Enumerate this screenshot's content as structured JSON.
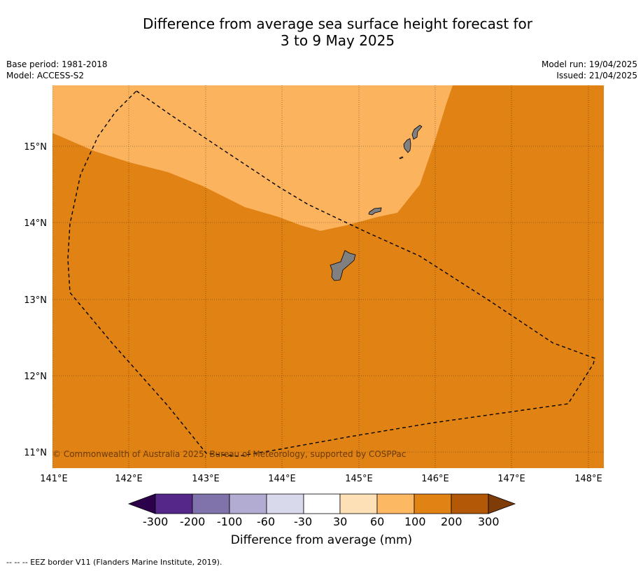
{
  "header": {
    "title_line1": "Difference from average sea surface height forecast for",
    "title_line2": "3 to 9 May 2025",
    "base_period": "Base period: 1981-2018",
    "model": "Model: ACCESS-S2",
    "model_run": "Model run: 19/04/2025",
    "issued": "Issued: 21/04/2025"
  },
  "map": {
    "lat_labels": [
      "15°N",
      "14°N",
      "13°N",
      "12°N",
      "11°N"
    ],
    "lon_labels": [
      "141°E",
      "142°E",
      "143°E",
      "144°E",
      "145°E",
      "146°E",
      "147°E",
      "148°E"
    ],
    "copyright": "© Commonwealth of Australia 2025, Bureau of Meteorology, supported by COSPPac",
    "colors": {
      "ocean_high": "#e08214",
      "ocean_mid": "#fbb35e",
      "land": "#808080"
    }
  },
  "colorbar": {
    "tick_labels": [
      "-300",
      "-200",
      "-100",
      "-60",
      "-30",
      "30",
      "60",
      "100",
      "200",
      "300"
    ],
    "title": "Difference from average (mm)",
    "colors": [
      "#2d004b",
      "#542788",
      "#8073ac",
      "#b2abd2",
      "#d8daeb",
      "#ffffff",
      "#fee0b6",
      "#fdb863",
      "#e08214",
      "#b35806",
      "#7f3b08"
    ]
  },
  "legend": {
    "eez_note": "--  --  -- EEZ border V11 (Flanders Marine Institute, 2019)."
  }
}
